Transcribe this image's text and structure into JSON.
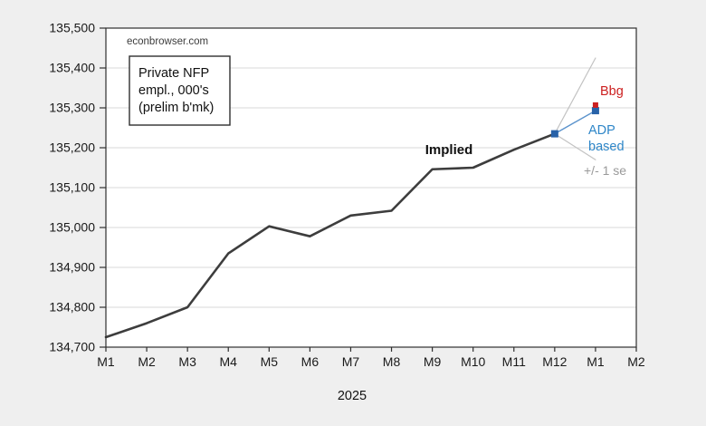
{
  "figure": {
    "watermark": "econbrowser.com",
    "note_box": {
      "line1": "Private NFP",
      "line2": "empl., 000's",
      "line3": "(prelim b'mk)"
    },
    "xlabel": "2025",
    "annotations": {
      "implied": {
        "text": "Implied",
        "color": "#111111"
      },
      "bbg": {
        "text": "Bbg",
        "color": "#cc2020"
      },
      "adp": {
        "line1": "ADP",
        "line2": "based",
        "color": "#2e86c8"
      },
      "se": {
        "text": "+/- 1 se",
        "color": "#9a9a9a"
      }
    },
    "colors": {
      "background": "#efefef",
      "plot_background": "#ffffff",
      "plot_border": "#2f2f2f",
      "gridline": "#d9d9d9",
      "implied_line": "#3d3d3d",
      "adp_line": "#5b93cc",
      "se_line": "#c2c2c2",
      "marker_navy": "#2862a8",
      "marker_red": "#cc2020"
    }
  },
  "chart_data": {
    "type": "line",
    "title": "Private NFP empl., 000's (prelim b'mk)",
    "source_watermark": "econbrowser.com",
    "x_axis_label": "2025",
    "x_categories": [
      "M1",
      "M2",
      "M3",
      "M4",
      "M5",
      "M6",
      "M7",
      "M8",
      "M9",
      "M10",
      "M11",
      "M12",
      "M1",
      "M2"
    ],
    "ylim": [
      134700,
      135500
    ],
    "y_tick_step": 100,
    "y_tick_labels": [
      "134,700",
      "134,800",
      "134,900",
      "135,000",
      "135,100",
      "135,200",
      "135,300",
      "135,400",
      "135,500"
    ],
    "grid": true,
    "legend_position": "none",
    "series": [
      {
        "name": "minus 1 se",
        "color": "#c2c2c2",
        "width": 1.2,
        "x": [
          11,
          12
        ],
        "values": [
          135235,
          135170
        ]
      },
      {
        "name": "plus 1 se",
        "color": "#c2c2c2",
        "width": 1.2,
        "x": [
          11,
          12
        ],
        "values": [
          135235,
          135425
        ]
      },
      {
        "name": "Implied",
        "color": "#3d3d3d",
        "width": 2.6,
        "x": [
          0,
          1,
          2,
          3,
          4,
          5,
          6,
          7,
          8,
          9,
          10,
          11
        ],
        "values": [
          134725,
          134760,
          134800,
          134935,
          135003,
          134978,
          135030,
          135042,
          135146,
          135150,
          135195,
          135235
        ]
      },
      {
        "name": "ADP based",
        "color": "#5b93cc",
        "width": 1.4,
        "x": [
          11,
          12
        ],
        "values": [
          135235,
          135293
        ]
      }
    ],
    "markers": [
      {
        "name": "implied-end-marker",
        "x": 11,
        "value": 135235,
        "shape": "square",
        "size": 8,
        "color": "#2862a8"
      },
      {
        "name": "adp-based-marker",
        "x": 12,
        "value": 135293,
        "shape": "square",
        "size": 8,
        "color": "#2862a8"
      },
      {
        "name": "bbg-marker",
        "x": 12,
        "value": 135307,
        "shape": "square",
        "size": 6,
        "color": "#cc2020"
      }
    ]
  }
}
